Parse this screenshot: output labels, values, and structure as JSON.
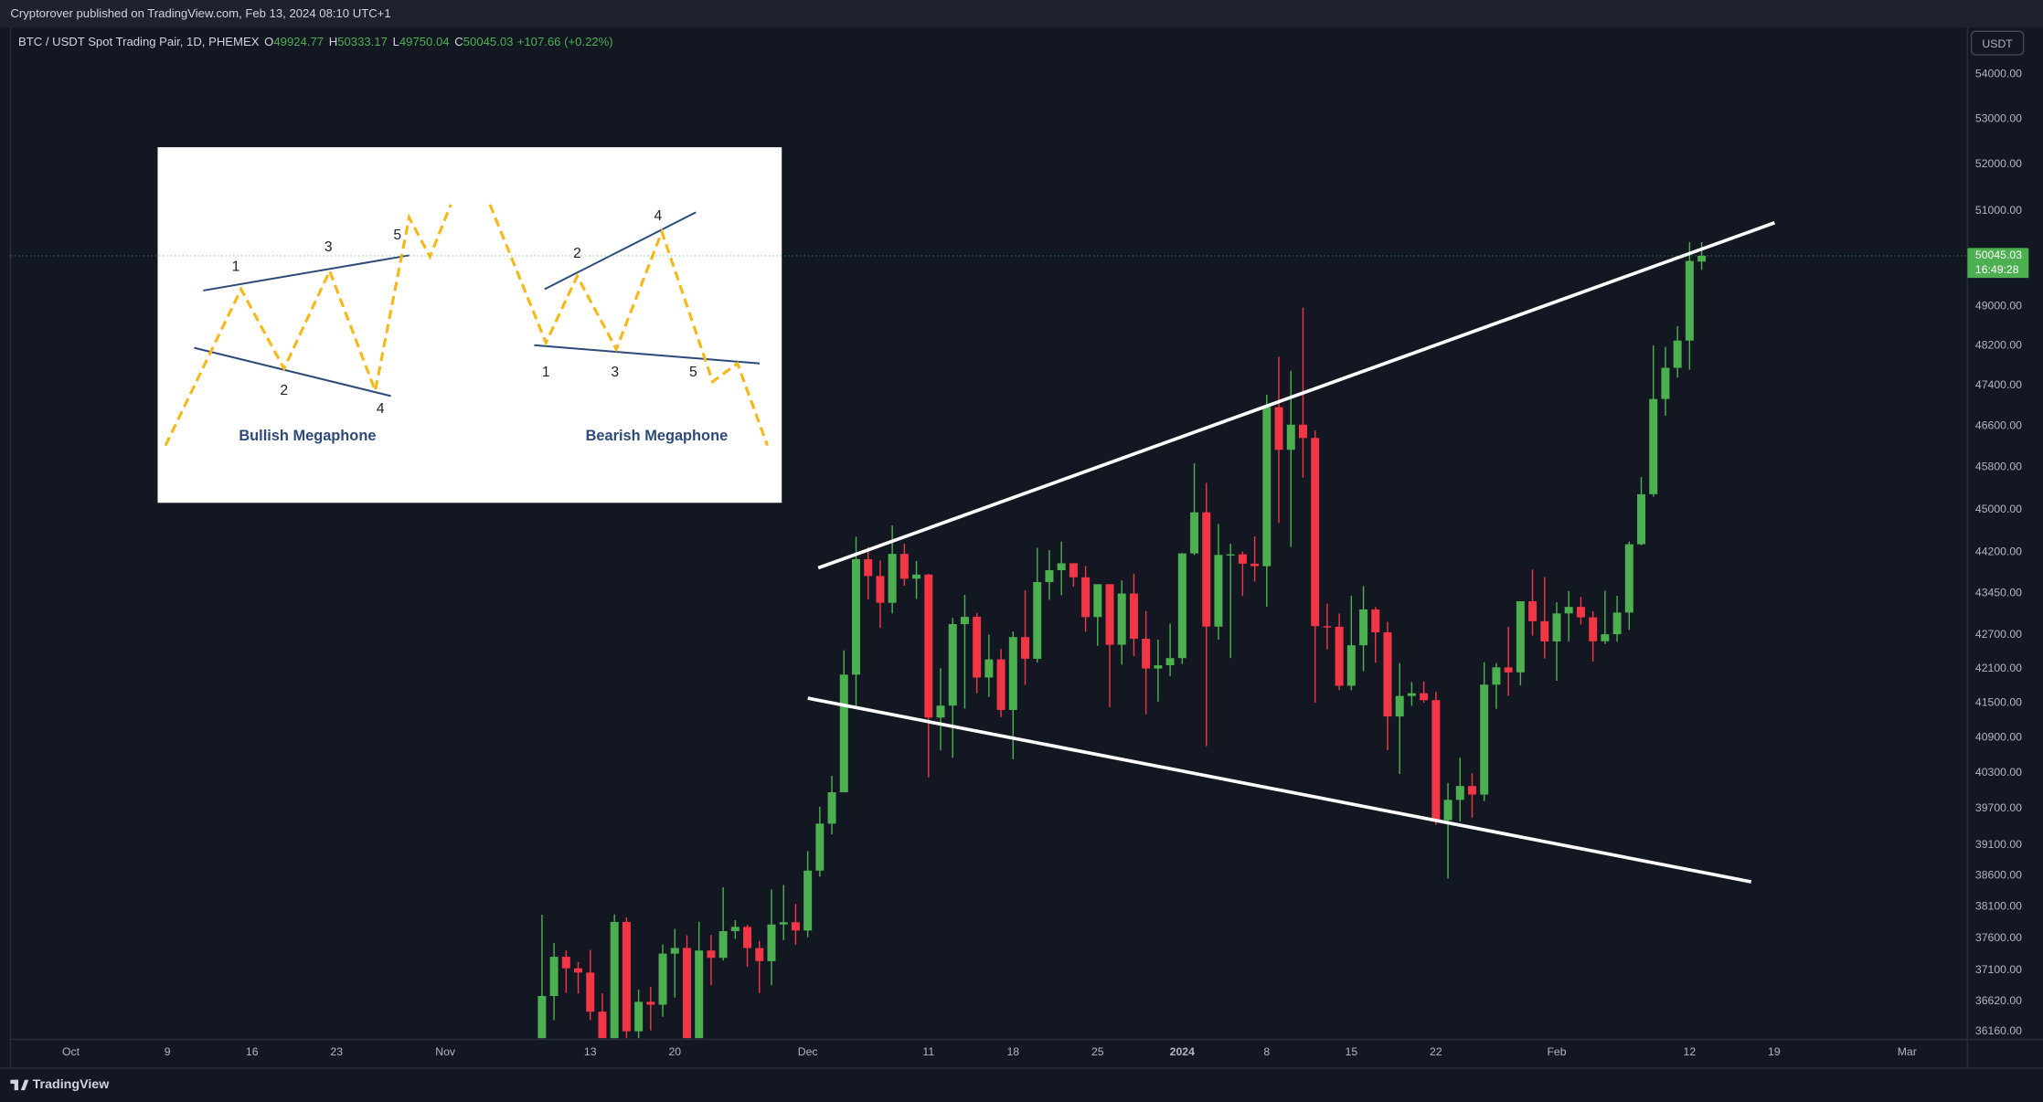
{
  "chart_data": {
    "type": "candlestick",
    "publisher_note": "Cryptorover published on TradingView.com, Feb 13, 2024 08:10 UTC+1",
    "symbol": "BTC / USDT Spot Trading Pair, 1D, PHEMEX",
    "ohlc_labels": [
      "O",
      "H",
      "L",
      "C"
    ],
    "change_label": "+107.66 (+0.22%)",
    "currency": "USDT",
    "countdown": "16:49:28",
    "brand": "TradingView",
    "up_color": "#4caf50",
    "down_color": "#f23645",
    "log_scale": true,
    "grid": false,
    "x": [
      "2023-11-09",
      "2023-11-10",
      "2023-11-11",
      "2023-11-12",
      "2023-11-13",
      "2023-11-14",
      "2023-11-15",
      "2023-11-16",
      "2023-11-17",
      "2023-11-18",
      "2023-11-19",
      "2023-11-20",
      "2023-11-21",
      "2023-11-22",
      "2023-11-23",
      "2023-11-24",
      "2023-11-25",
      "2023-11-26",
      "2023-11-27",
      "2023-11-28",
      "2023-11-29",
      "2023-11-30",
      "2023-12-01",
      "2023-12-02",
      "2023-12-03",
      "2023-12-04",
      "2023-12-05",
      "2023-12-06",
      "2023-12-07",
      "2023-12-08",
      "2023-12-09",
      "2023-12-10",
      "2023-12-11",
      "2023-12-12",
      "2023-12-13",
      "2023-12-14",
      "2023-12-15",
      "2023-12-16",
      "2023-12-17",
      "2023-12-18",
      "2023-12-19",
      "2023-12-20",
      "2023-12-21",
      "2023-12-22",
      "2023-12-23",
      "2023-12-24",
      "2023-12-25",
      "2023-12-26",
      "2023-12-27",
      "2023-12-28",
      "2023-12-29",
      "2023-12-30",
      "2023-12-31",
      "2024-01-01",
      "2024-01-02",
      "2024-01-03",
      "2024-01-04",
      "2024-01-05",
      "2024-01-06",
      "2024-01-07",
      "2024-01-08",
      "2024-01-09",
      "2024-01-10",
      "2024-01-11",
      "2024-01-12",
      "2024-01-13",
      "2024-01-14",
      "2024-01-15",
      "2024-01-16",
      "2024-01-17",
      "2024-01-18",
      "2024-01-19",
      "2024-01-20",
      "2024-01-21",
      "2024-01-22",
      "2024-01-23",
      "2024-01-24",
      "2024-01-25",
      "2024-01-26",
      "2024-01-27",
      "2024-01-28",
      "2024-01-29",
      "2024-01-30",
      "2024-01-31",
      "2024-02-01",
      "2024-02-02",
      "2024-02-03",
      "2024-02-04",
      "2024-02-05",
      "2024-02-06",
      "2024-02-07",
      "2024-02-08",
      "2024-02-09",
      "2024-02-10",
      "2024-02-11",
      "2024-02-12",
      "2024-02-13"
    ],
    "open": [
      35624,
      36702,
      37310,
      37130,
      37064,
      36462,
      35551,
      37858,
      36163,
      36613,
      36568,
      37359,
      37448,
      35741,
      37408,
      37294,
      37713,
      37780,
      37447,
      37242,
      37818,
      37854,
      37723,
      38682,
      39450,
      39972,
      41991,
      44073,
      43763,
      43274,
      44170,
      43713,
      43789,
      41243,
      41450,
      42890,
      43022,
      41941,
      42260,
      41374,
      42657,
      42271,
      43652,
      43869,
      43997,
      43739,
      43016,
      43613,
      42520,
      43442,
      42627,
      42099,
      42156,
      42283,
      44179,
      44946,
      42845,
      44151,
      44162,
      43989,
      43943,
      46970,
      46139,
      46627,
      46368,
      42853,
      42842,
      41796,
      42511,
      43154,
      42742,
      41262,
      41618,
      41665,
      41545,
      39507,
      39845,
      40077,
      39933,
      41816,
      42120,
      42031,
      43302,
      42942,
      42580,
      43082,
      43200,
      43011,
      42582,
      42708,
      43098,
      44349,
      45288,
      47132,
      47751,
      48299,
      49924.77
    ],
    "high": [
      37972,
      37526,
      37408,
      37228,
      37417,
      36744,
      37980,
      37929,
      36800,
      36845,
      37500,
      37750,
      37649,
      37861,
      37653,
      38414,
      37888,
      37814,
      37559,
      38377,
      38450,
      38145,
      38999,
      39731,
      40250,
      42420,
      44488,
      44297,
      44047,
      44700,
      44359,
      44038,
      43804,
      42104,
      43000,
      43420,
      43089,
      42700,
      42447,
      42757,
      43497,
      44283,
      44240,
      44398,
      44000,
      43946,
      43588,
      43613,
      43683,
      43804,
      43124,
      42612,
      42899,
      44184,
      45879,
      45500,
      44729,
      44357,
      44214,
      44495,
      47218,
      47972,
      47695,
      48969,
      46515,
      43257,
      43079,
      43400,
      43578,
      43198,
      42930,
      42195,
      41861,
      41870,
      41689,
      40129,
      40555,
      40289,
      42209,
      42195,
      42842,
      43305,
      43882,
      43745,
      43285,
      43489,
      43381,
      43119,
      43494,
      43399,
      44396,
      45614,
      48200,
      48170,
      48592,
      50334,
      50333.17
    ],
    "low": [
      35534,
      36333,
      36752,
      36738,
      36333,
      34800,
      35360,
      35500,
      35861,
      36178,
      36384,
      36677,
      35735,
      35632,
      36870,
      37251,
      37591,
      37150,
      36750,
      36868,
      37570,
      37500,
      37615,
      38583,
      39274,
      39972,
      41414,
      43335,
      42821,
      43081,
      43584,
      43343,
      40222,
      40680,
      40555,
      41400,
      41666,
      41600,
      41250,
      40530,
      41811,
      42206,
      43330,
      43412,
      43565,
      42751,
      42500,
      41424,
      42167,
      42318,
      41300,
      41520,
      41965,
      42180,
      44148,
      40750,
      42613,
      42284,
      43397,
      43662,
      43202,
      44748,
      44300,
      45606,
      41500,
      42436,
      41720,
      41718,
      42050,
      42200,
      40683,
      40280,
      41446,
      41500,
      39431,
      38555,
      39484,
      39550,
      39825,
      41394,
      41620,
      41804,
      42683,
      42276,
      41884,
      42584,
      42880,
      42222,
      42534,
      42574,
      42788,
      44331,
      45242,
      46800,
      47557,
      47710,
      49750.04
    ],
    "close": [
      36702,
      37310,
      37130,
      37064,
      36462,
      35551,
      37858,
      36163,
      36613,
      36568,
      37359,
      37448,
      35741,
      37408,
      37294,
      37713,
      37780,
      37447,
      37242,
      37818,
      37854,
      37723,
      38682,
      39450,
      39972,
      41991,
      44073,
      43763,
      43274,
      44170,
      43713,
      43789,
      41243,
      41450,
      42890,
      43022,
      41941,
      42260,
      41374,
      42657,
      42271,
      43652,
      43869,
      43997,
      43739,
      43016,
      43613,
      42520,
      43442,
      42627,
      42099,
      42156,
      42283,
      44179,
      44946,
      42845,
      44151,
      44162,
      43989,
      43943,
      46970,
      46139,
      46627,
      46368,
      42853,
      42842,
      41796,
      42511,
      43154,
      42742,
      41262,
      41618,
      41665,
      41545,
      39507,
      39845,
      40077,
      39933,
      41816,
      42120,
      42031,
      43302,
      42942,
      42580,
      43082,
      43200,
      43011,
      42582,
      42708,
      43098,
      44349,
      45288,
      47132,
      47751,
      48299,
      49937.37,
      50045.03
    ],
    "xlim": [
      "2023-09-26",
      "2024-03-06"
    ],
    "xticks": [
      {
        "value": "2023-10-01",
        "label": "Oct"
      },
      {
        "value": "2023-10-09",
        "label": "9"
      },
      {
        "value": "2023-10-16",
        "label": "16"
      },
      {
        "value": "2023-10-23",
        "label": "23"
      },
      {
        "value": "2023-11-01",
        "label": "Nov"
      },
      {
        "value": "2023-11-13",
        "label": "13"
      },
      {
        "value": "2023-11-20",
        "label": "20"
      },
      {
        "value": "2023-12-01",
        "label": "Dec"
      },
      {
        "value": "2023-12-11",
        "label": "11"
      },
      {
        "value": "2023-12-18",
        "label": "18"
      },
      {
        "value": "2023-12-25",
        "label": "25"
      },
      {
        "value": "2024-01-01",
        "label": "2024"
      },
      {
        "value": "2024-01-08",
        "label": "8"
      },
      {
        "value": "2024-01-15",
        "label": "15"
      },
      {
        "value": "2024-01-22",
        "label": "22"
      },
      {
        "value": "2024-02-01",
        "label": "Feb"
      },
      {
        "value": "2024-02-12",
        "label": "12"
      },
      {
        "value": "2024-02-19",
        "label": "19"
      },
      {
        "value": "2024-03-01",
        "label": "Mar"
      }
    ],
    "ylim": [
      36060,
      55040
    ],
    "yticks": [
      {
        "value": 36160,
        "label": "36160.00"
      },
      {
        "value": 36620,
        "label": "36620.00"
      },
      {
        "value": 37100,
        "label": "37100.00"
      },
      {
        "value": 37600,
        "label": "37600.00"
      },
      {
        "value": 38100,
        "label": "38100.00"
      },
      {
        "value": 38600,
        "label": "38600.00"
      },
      {
        "value": 39100,
        "label": "39100.00"
      },
      {
        "value": 39700,
        "label": "39700.00"
      },
      {
        "value": 40300,
        "label": "40300.00"
      },
      {
        "value": 40900,
        "label": "40900.00"
      },
      {
        "value": 41500,
        "label": "41500.00"
      },
      {
        "value": 42100,
        "label": "42100.00"
      },
      {
        "value": 42700,
        "label": "42700.00"
      },
      {
        "value": 43450,
        "label": "43450.00"
      },
      {
        "value": 44200,
        "label": "44200.00"
      },
      {
        "value": 45000,
        "label": "45000.00"
      },
      {
        "value": 45800,
        "label": "45800.00"
      },
      {
        "value": 46600,
        "label": "46600.00"
      },
      {
        "value": 47400,
        "label": "47400.00"
      },
      {
        "value": 48200,
        "label": "48200.00"
      },
      {
        "value": 49000,
        "label": "49000.00"
      },
      {
        "value": 51000,
        "label": "51000.00"
      },
      {
        "value": 52000,
        "label": "52000.00"
      },
      {
        "value": 53000,
        "label": "53000.00"
      },
      {
        "value": 54000,
        "label": "54000.00"
      }
    ]
  },
  "inset": {
    "bullish": {
      "points": [
        "1",
        "2",
        "3",
        "4",
        "5"
      ],
      "title": "Bullish Megaphone"
    },
    "bearish": {
      "points": [
        "1",
        "2",
        "3",
        "4",
        "5"
      ],
      "title": "Bearish Megaphone"
    }
  }
}
